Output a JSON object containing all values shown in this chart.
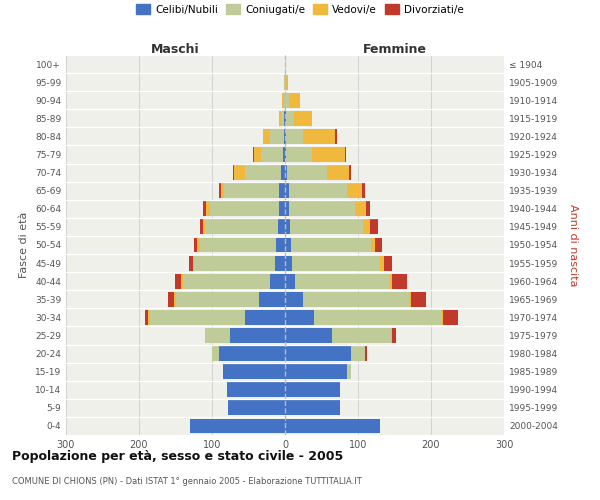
{
  "age_groups": [
    "0-4",
    "5-9",
    "10-14",
    "15-19",
    "20-24",
    "25-29",
    "30-34",
    "35-39",
    "40-44",
    "45-49",
    "50-54",
    "55-59",
    "60-64",
    "65-69",
    "70-74",
    "75-79",
    "80-84",
    "85-89",
    "90-94",
    "95-99",
    "100+"
  ],
  "birth_years": [
    "2000-2004",
    "1995-1999",
    "1990-1994",
    "1985-1989",
    "1980-1984",
    "1975-1979",
    "1970-1974",
    "1965-1969",
    "1960-1964",
    "1955-1959",
    "1950-1954",
    "1945-1949",
    "1940-1944",
    "1935-1939",
    "1930-1934",
    "1925-1929",
    "1920-1924",
    "1915-1919",
    "1910-1914",
    "1905-1909",
    "≤ 1904"
  ],
  "maschi": {
    "celibe": [
      130,
      78,
      80,
      85,
      90,
      75,
      55,
      35,
      20,
      14,
      12,
      9,
      8,
      8,
      5,
      3,
      2,
      1,
      0,
      0,
      0
    ],
    "coniugato": [
      0,
      0,
      0,
      0,
      10,
      35,
      130,
      115,
      120,
      110,
      105,
      100,
      95,
      75,
      50,
      30,
      18,
      4,
      2,
      1,
      0
    ],
    "vedovo": [
      0,
      0,
      0,
      0,
      0,
      0,
      2,
      2,
      2,
      2,
      3,
      3,
      5,
      5,
      15,
      10,
      10,
      3,
      2,
      0,
      0
    ],
    "divorziato": [
      0,
      0,
      0,
      0,
      0,
      0,
      5,
      8,
      8,
      5,
      5,
      5,
      5,
      2,
      1,
      1,
      0,
      0,
      0,
      0,
      0
    ]
  },
  "femmine": {
    "nubile": [
      130,
      75,
      75,
      85,
      90,
      65,
      40,
      25,
      14,
      10,
      8,
      7,
      6,
      5,
      3,
      2,
      2,
      2,
      0,
      0,
      0
    ],
    "coniugata": [
      0,
      0,
      0,
      5,
      20,
      80,
      175,
      145,
      130,
      120,
      110,
      100,
      90,
      80,
      55,
      35,
      22,
      10,
      5,
      1,
      0
    ],
    "vedova": [
      0,
      0,
      0,
      0,
      0,
      2,
      2,
      3,
      3,
      5,
      5,
      10,
      15,
      20,
      30,
      45,
      45,
      25,
      15,
      3,
      0
    ],
    "divorziata": [
      0,
      0,
      0,
      0,
      2,
      5,
      20,
      20,
      20,
      12,
      10,
      10,
      5,
      5,
      2,
      2,
      2,
      0,
      0,
      0,
      0
    ]
  },
  "color_celibe": "#4472C4",
  "color_coniugato": "#BFCC99",
  "color_vedovo": "#F0B83C",
  "color_divorziato": "#C0392B",
  "title": "Popolazione per età, sesso e stato civile - 2005",
  "subtitle": "COMUNE DI CHIONS (PN) - Dati ISTAT 1° gennaio 2005 - Elaborazione TUTTITALIA.IT",
  "ylabel_left": "Fasce di età",
  "ylabel_right": "Anni di nascita",
  "xlim": 300,
  "background_color": "#FFFFFF",
  "plot_bg": "#F0F0EB",
  "grid_color": "#CCCCCC",
  "legend_labels": [
    "Celibi/Nubili",
    "Coniugati/e",
    "Vedovi/e",
    "Divorziati/e"
  ]
}
